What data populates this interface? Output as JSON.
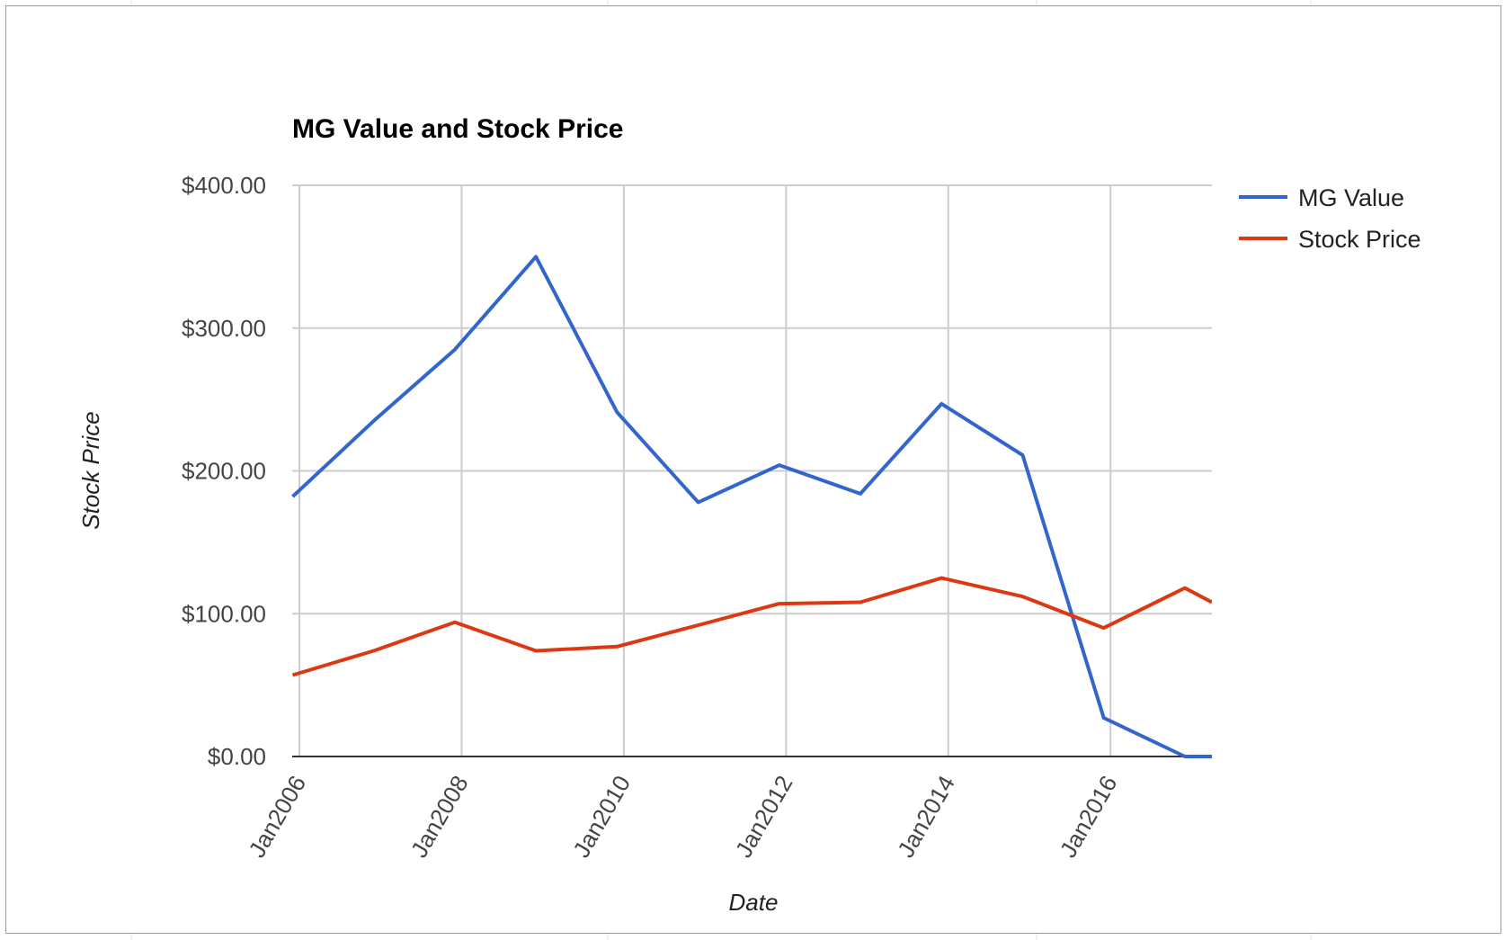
{
  "chart_data": {
    "type": "line",
    "title": "MG Value and Stock Price",
    "xlabel": "Date",
    "ylabel": "Stock Price",
    "ylim": [
      0,
      400
    ],
    "y_ticks": [
      "$0.00",
      "$100.00",
      "$200.00",
      "$300.00",
      "$400.00"
    ],
    "y_tick_values": [
      0,
      100,
      200,
      300,
      400
    ],
    "x_ticks": [
      "Jan2006",
      "Jan2008",
      "Jan2010",
      "Jan2012",
      "Jan2014",
      "Jan2016"
    ],
    "x_tick_dates": [
      "2006-01",
      "2008-01",
      "2010-01",
      "2012-01",
      "2014-01",
      "2016-01"
    ],
    "xlim": [
      "2006-01",
      "2017-04"
    ],
    "grid": true,
    "legend_position": "right",
    "x": [
      "2005-12",
      "2006-12",
      "2007-12",
      "2008-12",
      "2009-12",
      "2010-12",
      "2011-12",
      "2012-12",
      "2013-12",
      "2014-12",
      "2015-12",
      "2016-12",
      "2017-04"
    ],
    "series": [
      {
        "name": "MG Value",
        "color": "#3366cc",
        "values": [
          182,
          235,
          285,
          350,
          241,
          178,
          204,
          184,
          247,
          211,
          27,
          0,
          0
        ]
      },
      {
        "name": "Stock Price",
        "color": "#dc3912",
        "values": [
          57,
          74,
          94,
          74,
          77,
          92,
          107,
          108,
          125,
          112,
          90,
          118,
          108
        ]
      }
    ]
  }
}
